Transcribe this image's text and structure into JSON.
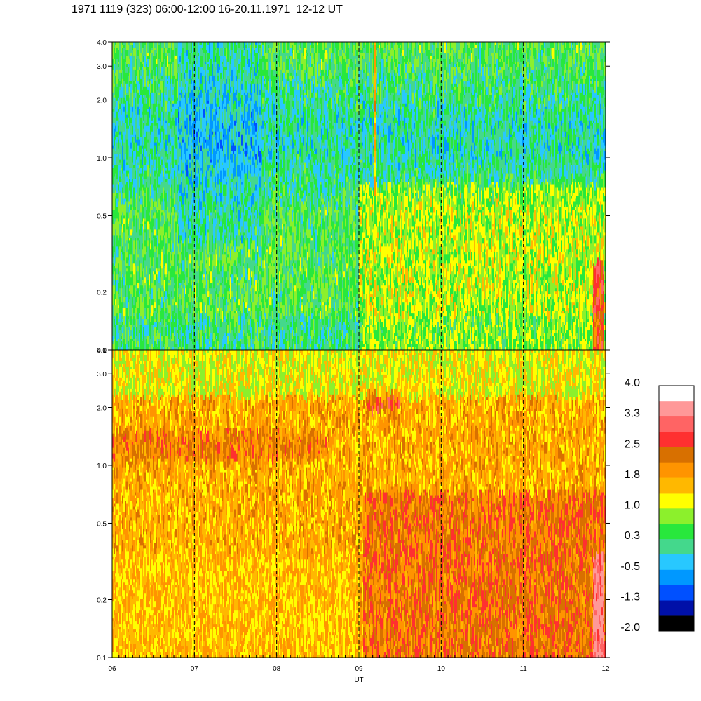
{
  "header": {
    "title": "1971 1119 (323) 06:00-12:00 16-20.11.1971  12-12 UT"
  },
  "chart_data": [
    {
      "type": "heatmap",
      "panel": "upper",
      "x_ticks": [
        "06",
        "07",
        "08",
        "09",
        "10",
        "11",
        "12"
      ],
      "xlim": [
        6,
        12
      ],
      "y_scale": "log",
      "ylim": [
        0.1,
        4.0
      ],
      "y_ticks": [
        "0.1",
        "0.2",
        "0.5",
        "1.0",
        "2.0",
        "3.0",
        "4.0"
      ],
      "dashed_vertical_lines_at": [
        7,
        8,
        9,
        10,
        11
      ],
      "dominant_levels": "green to blue (about -1.3 to 1.0); yellow-green bands after 09 UT below 1.0",
      "features": [
        {
          "description": "orange streak",
          "x": 9.2,
          "y_range": [
            1.0,
            4.0
          ]
        },
        {
          "description": "orange/red patch at bottom right",
          "x_range": [
            11.85,
            11.98
          ],
          "y_range": [
            0.1,
            0.35
          ]
        }
      ]
    },
    {
      "type": "heatmap",
      "panel": "lower",
      "x_ticks": [
        "06",
        "07",
        "08",
        "09",
        "10",
        "11",
        "12"
      ],
      "xlim": [
        6,
        12
      ],
      "xlabel": "UT",
      "y_scale": "log",
      "ylim": [
        0.1,
        4.0
      ],
      "y_ticks": [
        "0.1",
        "0.2",
        "0.5",
        "1.0",
        "2.0",
        "3.0",
        "4.0"
      ],
      "dashed_vertical_lines_at": [
        7,
        8,
        9,
        10,
        11
      ],
      "dominant_levels": "yellow to orange (about 1.0 to 2.5); dark orange to red after 09 UT below 0.5",
      "features": [
        {
          "description": "orange band",
          "x_range": [
            6,
            8.5
          ],
          "y": 1.0
        },
        {
          "description": "red-orange blob",
          "x_range": [
            9.1,
            9.5
          ],
          "y": 2.1
        },
        {
          "description": "red patch at bottom right",
          "x_range": [
            11.85,
            11.98
          ],
          "y_range": [
            0.1,
            0.4
          ]
        }
      ]
    }
  ],
  "colorbar": {
    "labels": [
      "4.0",
      "3.3",
      "2.5",
      "1.8",
      "1.0",
      "0.3",
      "-0.5",
      "-1.3",
      "-2.0"
    ],
    "colors": [
      "#000000",
      "#0010a8",
      "#0050ff",
      "#0098ff",
      "#28c8ff",
      "#44d88c",
      "#28e83c",
      "#8cf02c",
      "#ffff00",
      "#ffb800",
      "#ff9400",
      "#d87000",
      "#ff3030",
      "#ff6464",
      "#ff9898",
      "#ffffff"
    ]
  },
  "palette": {
    "bins": [
      "#000000",
      "#0010a8",
      "#0050ff",
      "#0098ff",
      "#28c8ff",
      "#44d88c",
      "#28e83c",
      "#8cf02c",
      "#ffff00",
      "#ffb800",
      "#ff9400",
      "#d87000",
      "#ff3030",
      "#ff6464",
      "#ff9898",
      "#ffffff"
    ]
  }
}
